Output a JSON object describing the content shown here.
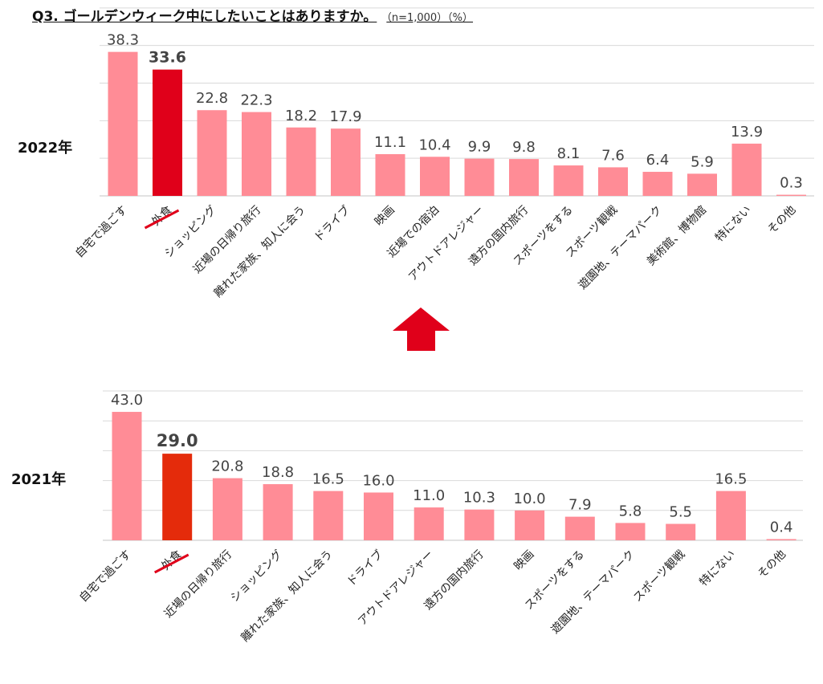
{
  "title": {
    "question": "Q3. ゴールデンウィーク中にしたいことはありますか。",
    "note": "（n=1,000）（%）"
  },
  "colors": {
    "bar": "#ff8c96",
    "highlight_2022": "#e0001a",
    "highlight_2021": "#e42b0b",
    "grid": "#d9d9d9",
    "arrow": "#e0001a"
  },
  "chart_data": [
    {
      "type": "bar",
      "series_label": "2022年",
      "highlight": "外食",
      "ylim": [
        0,
        50
      ],
      "grid": true,
      "categories": [
        "自宅で過ごす",
        "外食",
        "ショッピング",
        "近場の日帰り旅行",
        "離れた家族、知人に会う",
        "ドライブ",
        "映画",
        "近場での宿泊",
        "アウトドアレジャー",
        "遠方の国内旅行",
        "スポーツをする",
        "スポーツ観戦",
        "遊園地、テーマパーク",
        "美術館、博物館",
        "特にない",
        "その他"
      ],
      "values": [
        38.3,
        33.6,
        22.8,
        22.3,
        18.2,
        17.9,
        11.1,
        10.4,
        9.9,
        9.8,
        8.1,
        7.6,
        6.4,
        5.9,
        13.9,
        0.3
      ],
      "value_labels": [
        "38.3",
        "33.6",
        "22.8",
        "22.3",
        "18.2",
        "17.9",
        "11.1",
        "10.4",
        "9.9",
        "9.8",
        "8.1",
        "7.6",
        "6.4",
        "5.9",
        "13.9",
        "0.3"
      ]
    },
    {
      "type": "bar",
      "series_label": "2021年",
      "highlight": "外食",
      "ylim": [
        0,
        50
      ],
      "grid": true,
      "categories": [
        "自宅で過ごす",
        "外食",
        "近場の日帰り旅行",
        "ショッピング",
        "離れた家族、知人に会う",
        "ドライブ",
        "アウトドアレジャー",
        "遠方の国内旅行",
        "映画",
        "スポーツをする",
        "遊園地、テーマパーク",
        "スポーツ観戦",
        "特にない",
        "その他"
      ],
      "values": [
        43.0,
        29.0,
        20.8,
        18.8,
        16.5,
        16.0,
        11.0,
        10.3,
        10.0,
        7.9,
        5.8,
        5.5,
        16.5,
        0.4
      ],
      "value_labels": [
        "43.0",
        "29.0",
        "20.8",
        "18.8",
        "16.5",
        "16.0",
        "11.0",
        "10.3",
        "10.0",
        "7.9",
        "5.8",
        "5.5",
        "16.5",
        "0.4"
      ]
    }
  ]
}
